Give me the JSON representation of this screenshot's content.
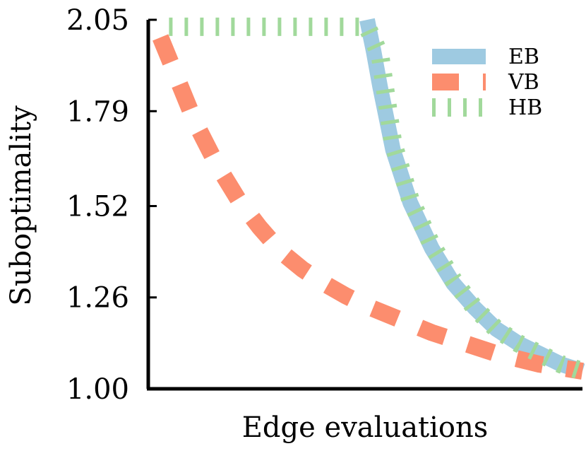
{
  "chart_data": {
    "type": "line",
    "title": "",
    "xlabel": "Edge evaluations",
    "ylabel": "Suboptimality",
    "x_ticks_shown": false,
    "xlim": [
      0,
      1
    ],
    "ylim": [
      1.0,
      2.05
    ],
    "yticks": [
      1.0,
      1.26,
      1.52,
      1.79,
      2.05
    ],
    "ytick_labels": [
      "1.00",
      "1.26",
      "1.52",
      "1.79",
      "2.05"
    ],
    "grid": false,
    "legend_position": "top-right",
    "series": [
      {
        "name": "EB",
        "color": "#9ecae1",
        "style": "solid-thick",
        "x": [
          0.5,
          0.515,
          0.53,
          0.56,
          0.6,
          0.65,
          0.7,
          0.75,
          0.8,
          0.85,
          0.9,
          0.95,
          1.0
        ],
        "y": [
          2.05,
          1.96,
          1.86,
          1.68,
          1.53,
          1.4,
          1.3,
          1.23,
          1.17,
          1.13,
          1.1,
          1.07,
          1.05
        ]
      },
      {
        "name": "VB",
        "color": "#fc8d6e",
        "style": "dashed",
        "x": [
          0.02,
          0.05,
          0.1,
          0.15,
          0.2,
          0.25,
          0.3,
          0.35,
          0.4,
          0.45,
          0.5,
          0.55,
          0.6,
          0.65,
          0.7,
          0.75,
          0.8,
          0.85,
          0.9,
          0.95,
          1.0
        ],
        "y": [
          2.0,
          1.91,
          1.76,
          1.64,
          1.54,
          1.46,
          1.39,
          1.34,
          1.3,
          1.265,
          1.235,
          1.21,
          1.185,
          1.16,
          1.14,
          1.12,
          1.1,
          1.085,
          1.07,
          1.06,
          1.05
        ]
      },
      {
        "name": "HB",
        "color": "#a1d99b",
        "style": "dotted-ticks",
        "x": [
          0.04,
          0.1,
          0.2,
          0.3,
          0.4,
          0.5,
          0.53,
          0.56,
          0.6,
          0.65,
          0.7,
          0.75,
          0.8,
          0.85,
          0.9,
          0.95,
          1.0
        ],
        "y": [
          2.03,
          2.03,
          2.03,
          2.03,
          2.03,
          2.03,
          1.95,
          1.7,
          1.54,
          1.41,
          1.31,
          1.23,
          1.17,
          1.13,
          1.1,
          1.07,
          1.05
        ]
      }
    ]
  }
}
